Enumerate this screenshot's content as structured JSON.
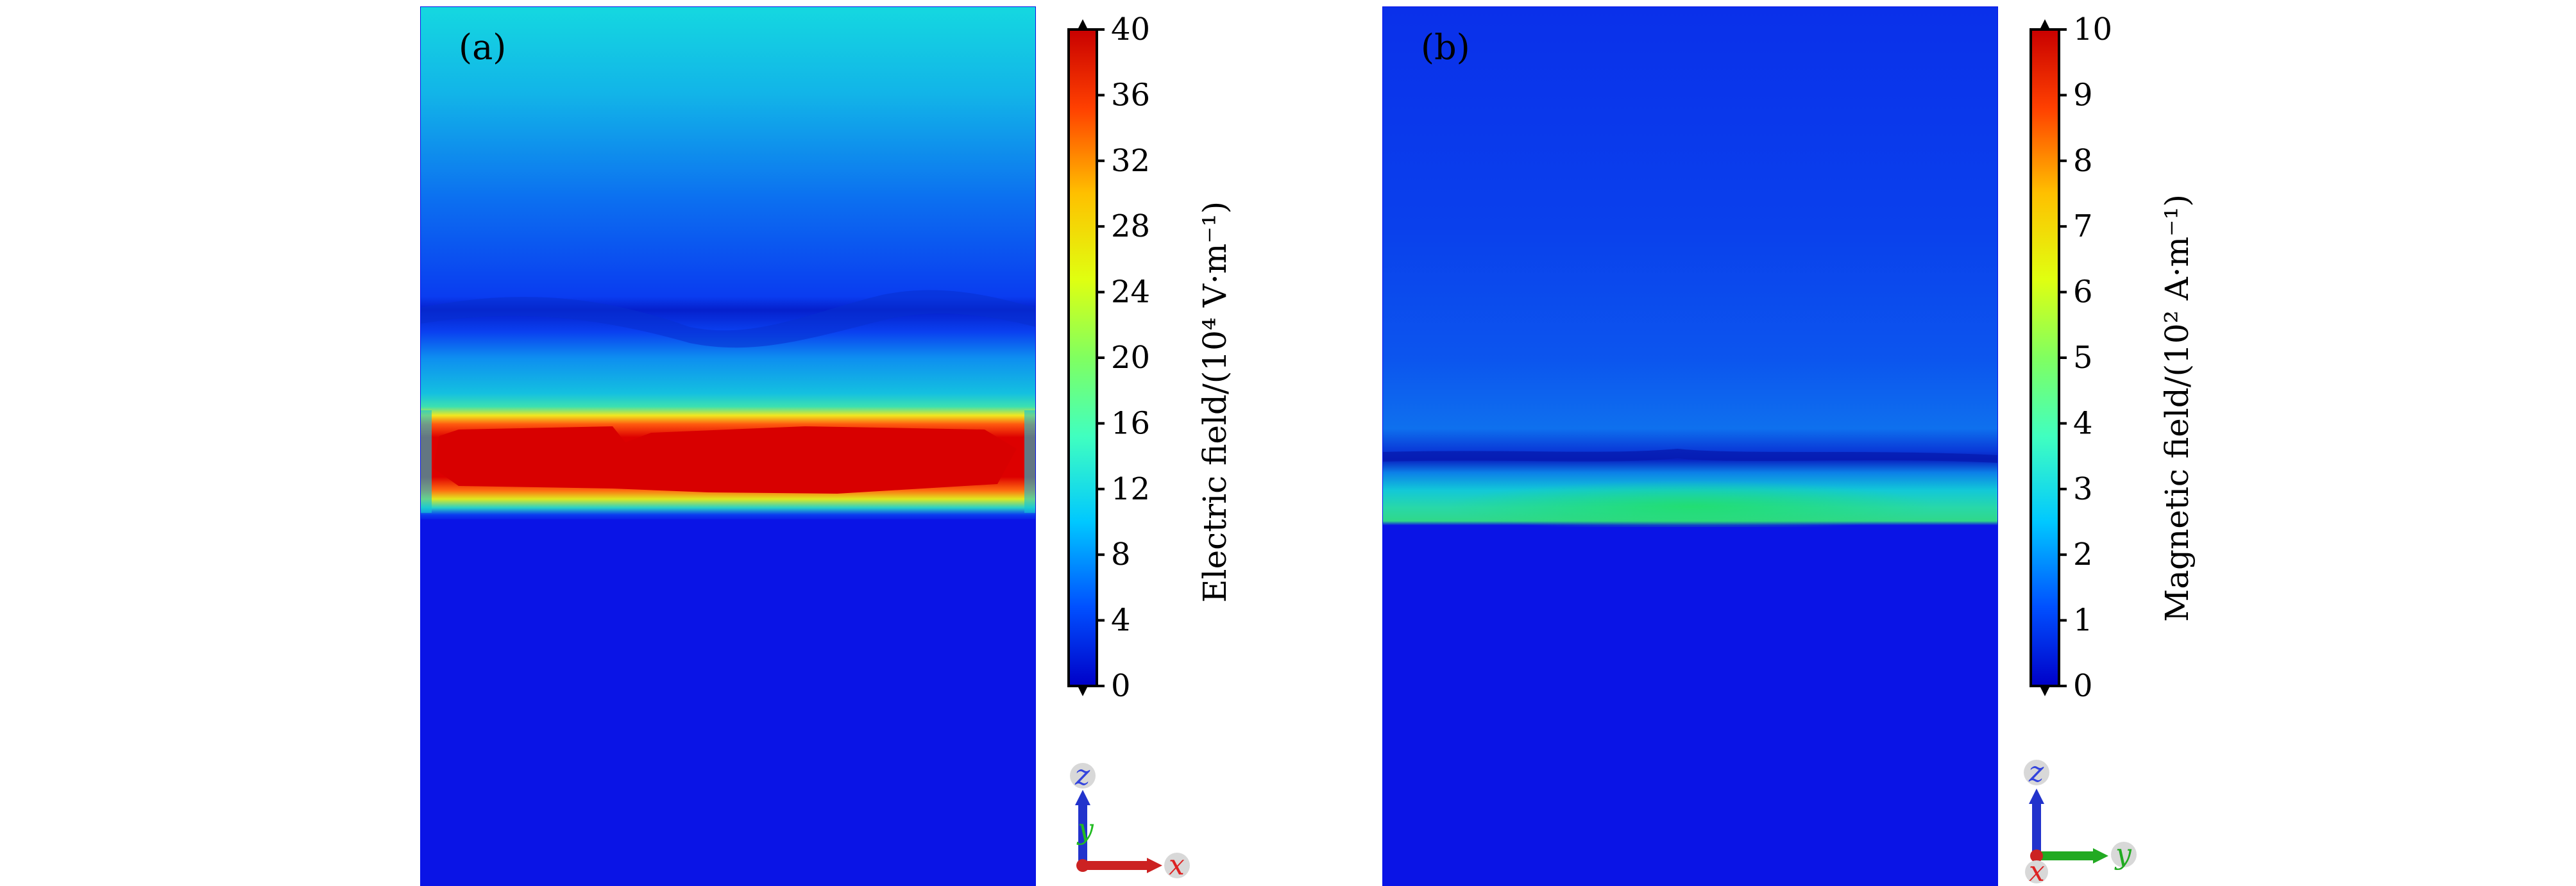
{
  "panel_a": {
    "label": "(a)",
    "colorbar": {
      "title": "Electric field/(10⁴ V·m⁻¹)",
      "ticks": [
        "0",
        "4",
        "8",
        "12",
        "16",
        "20",
        "24",
        "28",
        "32",
        "36",
        "40"
      ],
      "min": 0,
      "max": 40
    },
    "axes": {
      "up": "z",
      "depth": "y",
      "right": "x"
    }
  },
  "panel_b": {
    "label": "(b)",
    "colorbar": {
      "title": "Magnetic field/(10² A·m⁻¹)",
      "ticks": [
        "0",
        "1",
        "2",
        "3",
        "4",
        "5",
        "6",
        "7",
        "8",
        "9",
        "10"
      ],
      "min": 0,
      "max": 10
    },
    "axes": {
      "up": "z",
      "depth": "x",
      "right": "y"
    }
  },
  "colors": {
    "jet": [
      "#00007f",
      "#0000ff",
      "#007fff",
      "#00ffff",
      "#7fff7f",
      "#ffff00",
      "#ff7f00",
      "#ff0000",
      "#7f0000"
    ],
    "background_field": "#0a14e6",
    "z_axis": "#3344dd",
    "x_axis_a": "#dd2222",
    "y_axis_b": "#22bb22"
  }
}
